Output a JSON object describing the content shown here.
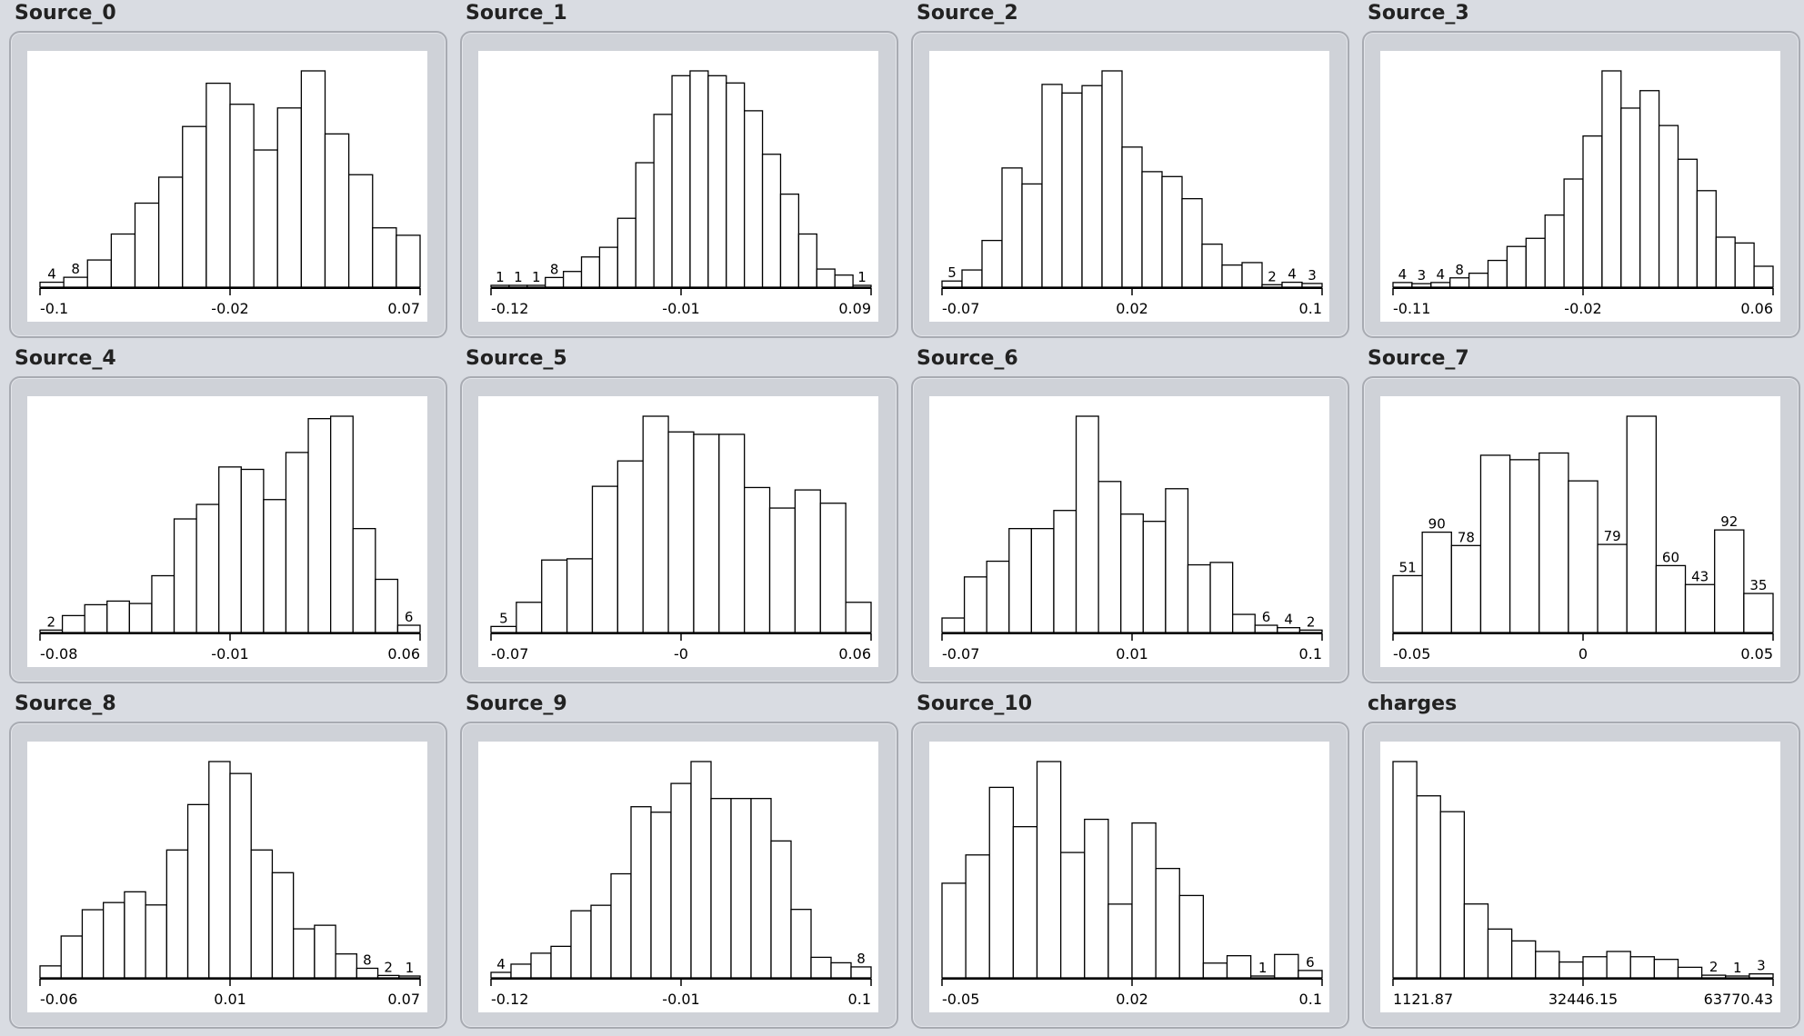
{
  "theme": {
    "bar_fill": "#ffffff",
    "bar_stroke": "#000000",
    "panel_bg": "#cfd2d8",
    "page_bg": "#d9dce2"
  },
  "chart_data": [
    {
      "name": "Source_0",
      "type": "bar",
      "counts": [
        4,
        8,
        22,
        43,
        68,
        89,
        130,
        165,
        148,
        111,
        145,
        175,
        124,
        91,
        48,
        42
      ],
      "labels": {
        "0": "4",
        "1": "8"
      },
      "ticks": [
        "-0.1",
        "-0.02",
        "0.07"
      ]
    },
    {
      "name": "Source_1",
      "type": "bar",
      "counts": [
        1,
        1,
        1,
        8,
        13,
        25,
        33,
        57,
        103,
        143,
        175,
        179,
        175,
        169,
        146,
        110,
        77,
        44,
        15,
        10,
        1
      ],
      "labels": {
        "0": "1",
        "1": "1",
        "2": "1",
        "3": "8",
        "20": "1"
      },
      "ticks": [
        "-0.12",
        "-0.01",
        "0.09"
      ]
    },
    {
      "name": "Source_2",
      "type": "bar",
      "counts": [
        5,
        14,
        38,
        97,
        84,
        165,
        158,
        164,
        176,
        114,
        94,
        90,
        72,
        35,
        18,
        20,
        2,
        4,
        3
      ],
      "labels": {
        "0": "5",
        "16": "2",
        "17": "4",
        "18": "3"
      },
      "ticks": [
        "-0.07",
        "0.02",
        "0.1"
      ]
    },
    {
      "name": "Source_3",
      "type": "bar",
      "counts": [
        4,
        3,
        4,
        8,
        12,
        23,
        35,
        42,
        62,
        93,
        130,
        186,
        154,
        169,
        139,
        110,
        83,
        43,
        38,
        18
      ],
      "labels": {
        "0": "4",
        "1": "3",
        "2": "4",
        "3": "8"
      },
      "ticks": [
        "-0.11",
        "-0.02",
        "0.06"
      ]
    },
    {
      "name": "Source_4",
      "type": "bar",
      "counts": [
        2,
        14,
        23,
        26,
        24,
        47,
        94,
        106,
        137,
        135,
        110,
        149,
        177,
        179,
        86,
        44,
        6
      ],
      "labels": {
        "0": "2",
        "16": "6"
      },
      "ticks": [
        "-0.08",
        "-0.01",
        "0.06"
      ]
    },
    {
      "name": "Source_5",
      "type": "bar",
      "counts": [
        5,
        25,
        60,
        61,
        121,
        142,
        179,
        166,
        164,
        164,
        120,
        103,
        118,
        107,
        25
      ],
      "labels": {
        "0": "5"
      },
      "ticks": [
        "-0.07",
        "-0",
        "0.06"
      ]
    },
    {
      "name": "Source_6",
      "type": "bar",
      "counts": [
        12,
        46,
        59,
        86,
        86,
        101,
        179,
        125,
        98,
        92,
        119,
        56,
        58,
        15,
        6,
        4,
        2
      ],
      "labels": {
        "14": "6",
        "15": "4",
        "16": "2"
      },
      "ticks": [
        "-0.07",
        "0.01",
        "0.1"
      ]
    },
    {
      "name": "Source_7",
      "type": "bar",
      "counts": [
        51,
        90,
        78,
        159,
        155,
        161,
        136,
        79,
        194,
        60,
        43,
        92,
        35
      ],
      "labels": {
        "0": "51",
        "1": "90",
        "2": "78",
        "7": "79",
        "9": "60",
        "10": "43",
        "11": "92",
        "12": "35"
      },
      "ticks": [
        "-0.05",
        "0",
        "0.05"
      ]
    },
    {
      "name": "Source_8",
      "type": "bar",
      "counts": [
        10,
        35,
        57,
        63,
        72,
        61,
        107,
        145,
        181,
        171,
        107,
        88,
        41,
        44,
        20,
        8,
        2,
        1
      ],
      "labels": {
        "15": "8",
        "16": "2",
        "17": "1"
      },
      "ticks": [
        "-0.06",
        "0.01",
        "0.07"
      ]
    },
    {
      "name": "Source_9",
      "type": "bar",
      "counts": [
        4,
        10,
        18,
        23,
        49,
        53,
        76,
        125,
        121,
        142,
        158,
        131,
        131,
        131,
        100,
        50,
        15,
        11,
        8
      ],
      "labels": {
        "0": "4",
        "18": "8"
      },
      "ticks": [
        "-0.12",
        "-0.01",
        "0.1"
      ]
    },
    {
      "name": "Source_10",
      "type": "bar",
      "counts": [
        77,
        100,
        155,
        123,
        176,
        102,
        129,
        60,
        126,
        89,
        67,
        12,
        18,
        1,
        19,
        6
      ],
      "labels": {
        "13": "1",
        "15": "6"
      },
      "ticks": [
        "-0.05",
        "0.02",
        "0.1"
      ]
    },
    {
      "name": "charges",
      "type": "bar",
      "counts": [
        164,
        138,
        126,
        56,
        37,
        28,
        20,
        12,
        16,
        20,
        16,
        14,
        8,
        2,
        1,
        3
      ],
      "labels": {
        "13": "2",
        "14": "1",
        "15": "3"
      },
      "ticks": [
        "1121.87",
        "32446.15",
        "63770.43"
      ]
    }
  ]
}
